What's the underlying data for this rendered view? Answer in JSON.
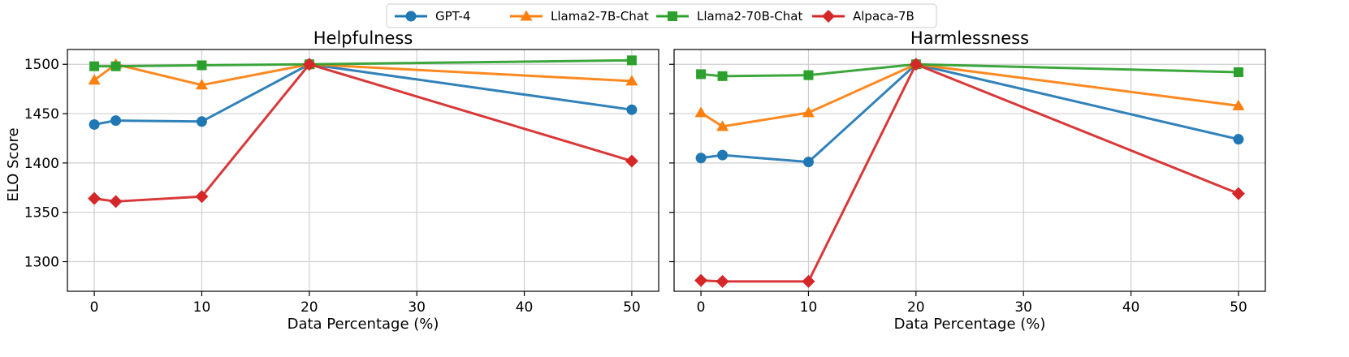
{
  "chart_data": {
    "type": "line",
    "legend": {
      "position": "top-center",
      "entries": [
        "GPT-4",
        "Llama2-7B-Chat",
        "Llama2-70B-Chat",
        "Alpaca-7B"
      ]
    },
    "ylabel": "ELO Score",
    "series_style": [
      {
        "name": "GPT-4",
        "color": "#1f77b4",
        "marker": "circle"
      },
      {
        "name": "Llama2-7B-Chat",
        "color": "#ff7f0e",
        "marker": "triangle"
      },
      {
        "name": "Llama2-70B-Chat",
        "color": "#2ca02c",
        "marker": "square"
      },
      {
        "name": "Alpaca-7B",
        "color": "#d62728",
        "marker": "diamond"
      }
    ],
    "panels": [
      {
        "title": "Helpfulness",
        "xlabel": "Data Percentage (%)",
        "x": [
          0,
          2,
          10,
          20,
          50
        ],
        "xlim": [
          -2.5,
          52.5
        ],
        "ylim": [
          1270,
          1515
        ],
        "xticks": [
          0,
          10,
          20,
          30,
          40,
          50
        ],
        "yticks": [
          1300,
          1350,
          1400,
          1450,
          1500
        ],
        "grid": true,
        "series": [
          {
            "name": "GPT-4",
            "values": [
              1439,
              1443,
              1442,
              1500,
              1454
            ]
          },
          {
            "name": "Llama2-7B-Chat",
            "values": [
              1484,
              1500,
              1479,
              1500,
              1483
            ]
          },
          {
            "name": "Llama2-70B-Chat",
            "values": [
              1498,
              1498,
              1499,
              1500,
              1504
            ]
          },
          {
            "name": "Alpaca-7B",
            "values": [
              1364,
              1361,
              1366,
              1500,
              1402
            ]
          }
        ]
      },
      {
        "title": "Harmlessness",
        "xlabel": "Data Percentage (%)",
        "x": [
          0,
          2,
          10,
          20,
          50
        ],
        "xlim": [
          -2.5,
          52.5
        ],
        "ylim": [
          1270,
          1515
        ],
        "xticks": [
          0,
          10,
          20,
          30,
          40,
          50
        ],
        "yticks": [
          1300,
          1350,
          1400,
          1450,
          1500
        ],
        "grid": true,
        "series": [
          {
            "name": "GPT-4",
            "values": [
              1405,
              1408,
              1401,
              1500,
              1424
            ]
          },
          {
            "name": "Llama2-7B-Chat",
            "values": [
              1451,
              1437,
              1451,
              1500,
              1458
            ]
          },
          {
            "name": "Llama2-70B-Chat",
            "values": [
              1490,
              1488,
              1489,
              1500,
              1492
            ]
          },
          {
            "name": "Alpaca-7B",
            "values": [
              1281,
              1280,
              1280,
              1500,
              1369
            ]
          }
        ]
      }
    ]
  }
}
